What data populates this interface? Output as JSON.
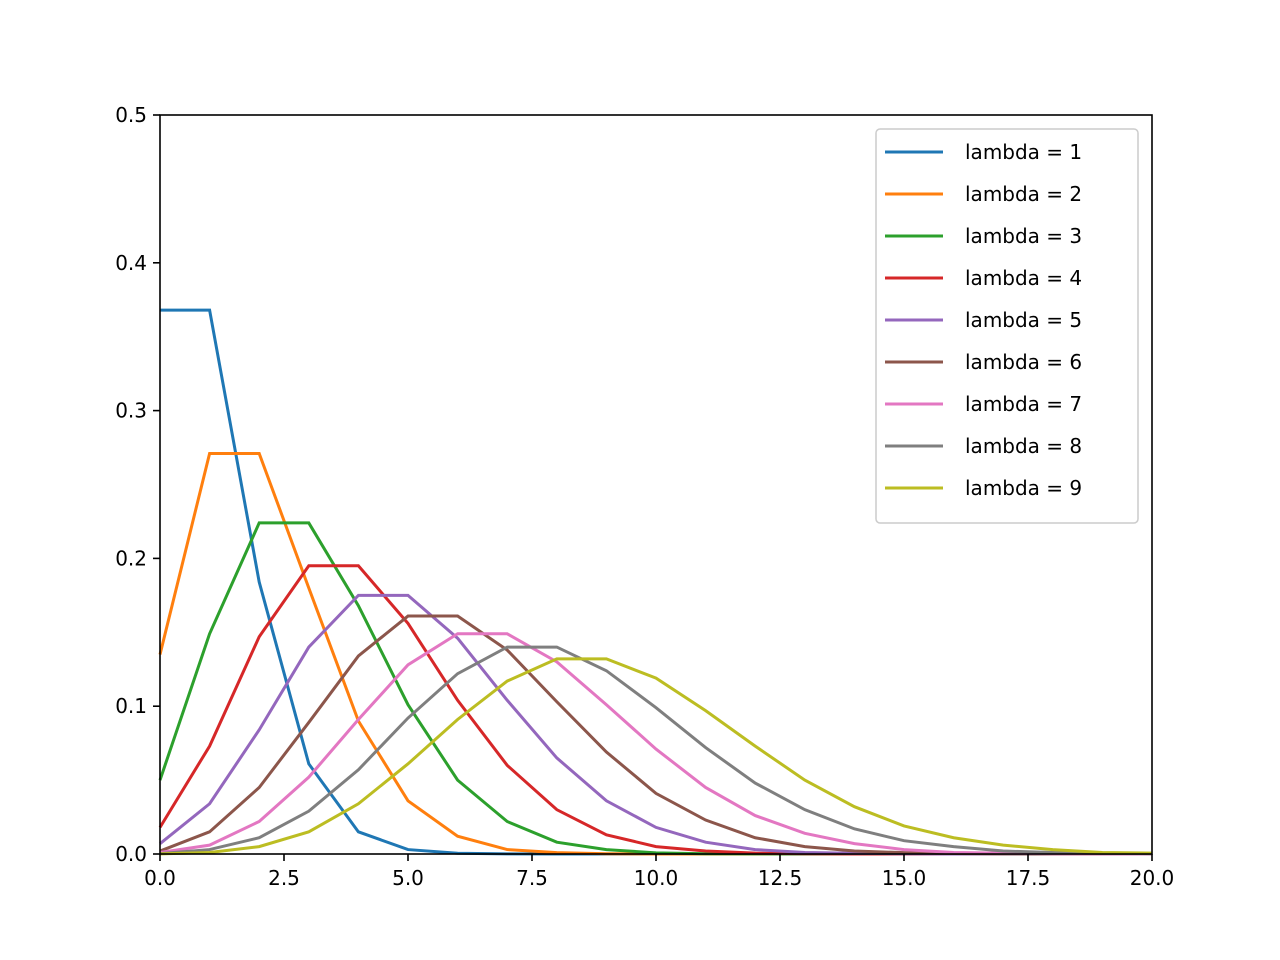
{
  "chart_data": {
    "type": "line",
    "title": "",
    "xlabel": "",
    "ylabel": "",
    "xlim": [
      0,
      20
    ],
    "ylim": [
      0,
      0.5
    ],
    "x": [
      0,
      1,
      2,
      3,
      4,
      5,
      6,
      7,
      8,
      9,
      10,
      11,
      12,
      13,
      14,
      15,
      16,
      17,
      18,
      19,
      20
    ],
    "xticks": [
      0,
      2.5,
      5,
      7.5,
      10,
      12.5,
      15,
      17.5,
      20
    ],
    "xtick_labels": [
      "0.0",
      "2.5",
      "5.0",
      "7.5",
      "10.0",
      "12.5",
      "15.0",
      "17.5",
      "20.0"
    ],
    "yticks": [
      0,
      0.1,
      0.2,
      0.3,
      0.4,
      0.5
    ],
    "ytick_labels": [
      "0.0",
      "0.1",
      "0.2",
      "0.3",
      "0.4",
      "0.5"
    ],
    "grid": false,
    "legend_position": "top-right",
    "series": [
      {
        "name": "lambda = 1",
        "color": "#1f77b4",
        "values": [
          0.368,
          0.368,
          0.184,
          0.061,
          0.015,
          0.003,
          0.0005,
          0.0001,
          0,
          0,
          0,
          0,
          0,
          0,
          0,
          0,
          0,
          0,
          0,
          0,
          0
        ]
      },
      {
        "name": "lambda = 2",
        "color": "#ff7f0e",
        "values": [
          0.135,
          0.271,
          0.271,
          0.18,
          0.09,
          0.036,
          0.012,
          0.003,
          0.0009,
          0.0002,
          0,
          0,
          0,
          0,
          0,
          0,
          0,
          0,
          0,
          0,
          0
        ]
      },
      {
        "name": "lambda = 3",
        "color": "#2ca02c",
        "values": [
          0.05,
          0.149,
          0.224,
          0.224,
          0.168,
          0.101,
          0.05,
          0.022,
          0.008,
          0.003,
          0.0008,
          0.0002,
          0.0001,
          0,
          0,
          0,
          0,
          0,
          0,
          0,
          0
        ]
      },
      {
        "name": "lambda = 4",
        "color": "#d62728",
        "values": [
          0.018,
          0.073,
          0.147,
          0.195,
          0.195,
          0.156,
          0.104,
          0.06,
          0.03,
          0.013,
          0.005,
          0.002,
          0.0006,
          0.0002,
          0,
          0,
          0,
          0,
          0,
          0,
          0
        ]
      },
      {
        "name": "lambda = 5",
        "color": "#9467bd",
        "values": [
          0.007,
          0.034,
          0.084,
          0.14,
          0.175,
          0.175,
          0.146,
          0.104,
          0.065,
          0.036,
          0.018,
          0.008,
          0.003,
          0.001,
          0.0005,
          0.0002,
          0,
          0,
          0,
          0,
          0
        ]
      },
      {
        "name": "lambda = 6",
        "color": "#8c564b",
        "values": [
          0.002,
          0.015,
          0.045,
          0.089,
          0.134,
          0.161,
          0.161,
          0.138,
          0.103,
          0.069,
          0.041,
          0.023,
          0.011,
          0.005,
          0.002,
          0.0009,
          0.0003,
          0.0001,
          0,
          0,
          0
        ]
      },
      {
        "name": "lambda = 7",
        "color": "#e377c2",
        "values": [
          0.001,
          0.006,
          0.022,
          0.052,
          0.091,
          0.128,
          0.149,
          0.149,
          0.13,
          0.101,
          0.071,
          0.045,
          0.026,
          0.014,
          0.007,
          0.003,
          0.001,
          0.0006,
          0.0002,
          0.0001,
          0
        ]
      },
      {
        "name": "lambda = 8",
        "color": "#7f7f7f",
        "values": [
          0.0003,
          0.003,
          0.011,
          0.029,
          0.057,
          0.092,
          0.122,
          0.14,
          0.14,
          0.124,
          0.099,
          0.072,
          0.048,
          0.03,
          0.017,
          0.009,
          0.005,
          0.002,
          0.001,
          0.0004,
          0.0002
        ]
      },
      {
        "name": "lambda = 9",
        "color": "#bcbd22",
        "values": [
          0.0001,
          0.001,
          0.005,
          0.015,
          0.034,
          0.061,
          0.091,
          0.117,
          0.132,
          0.132,
          0.119,
          0.097,
          0.073,
          0.05,
          0.032,
          0.019,
          0.011,
          0.006,
          0.003,
          0.001,
          0.0006
        ]
      }
    ]
  }
}
